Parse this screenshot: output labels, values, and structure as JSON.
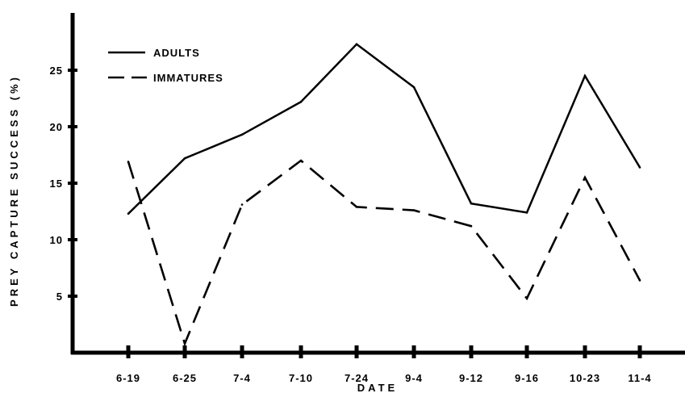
{
  "chart_data": {
    "type": "line",
    "title": "",
    "xlabel": "DATE",
    "ylabel": "PREY CAPTURE SUCCESS (%)",
    "categories": [
      "6-19",
      "6-25",
      "7-4",
      "7-10",
      "7-24",
      "9-4",
      "9-12",
      "9-16",
      "10-23",
      "11-4"
    ],
    "series": [
      {
        "name": "ADULTS",
        "style": "solid",
        "values": [
          12.3,
          17.2,
          19.3,
          22.2,
          27.3,
          23.5,
          13.2,
          12.4,
          24.5,
          16.4
        ]
      },
      {
        "name": "IMMATURES",
        "style": "dashed",
        "values": [
          16.9,
          0.8,
          13.1,
          17.0,
          12.9,
          12.6,
          11.2,
          4.8,
          15.5,
          6.4
        ]
      }
    ],
    "yticks": [
      5,
      10,
      15,
      20,
      25
    ],
    "ylim": [
      0,
      30
    ],
    "grid": false,
    "legend_position": "top-left",
    "colors": {
      "line": "#000000",
      "axis": "#000000",
      "background": "#ffffff"
    }
  }
}
